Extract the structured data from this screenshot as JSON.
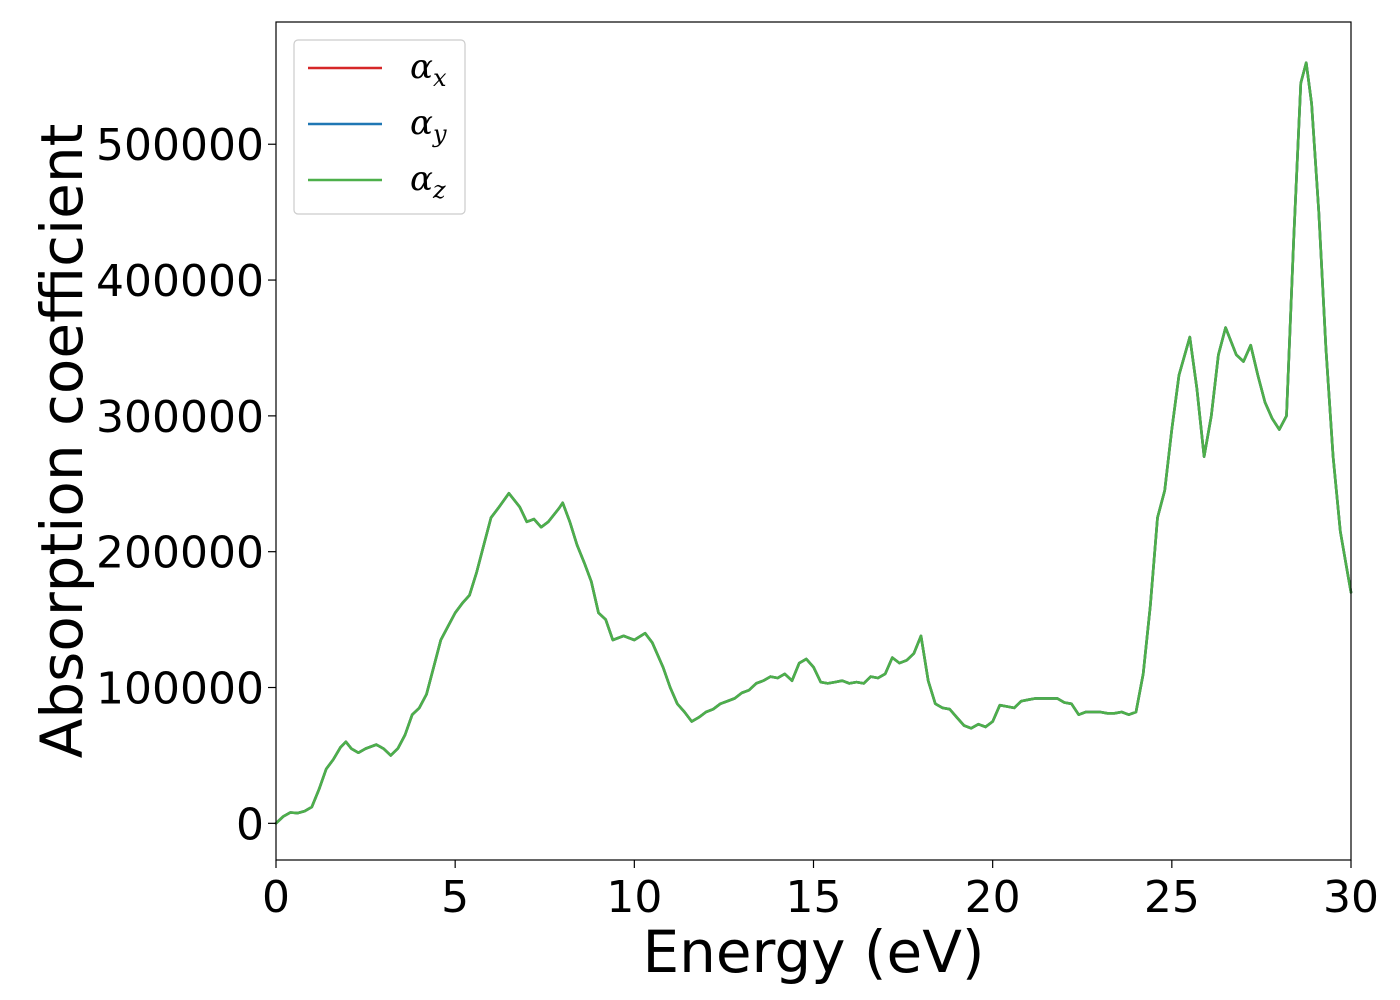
{
  "chart_data": {
    "type": "line",
    "xlabel": "Energy (eV)",
    "ylabel": "Absorption coefficient",
    "xlim": [
      0,
      30
    ],
    "ylim": [
      -27000,
      590000
    ],
    "xticks": [
      0,
      5,
      10,
      15,
      20,
      25,
      30
    ],
    "xtick_labels": [
      "0",
      "5",
      "10",
      "15",
      "20",
      "25",
      "30"
    ],
    "yticks": [
      0,
      100000,
      200000,
      300000,
      400000,
      500000
    ],
    "ytick_labels": [
      "0",
      "100000",
      "200000",
      "300000",
      "400000",
      "500000"
    ],
    "grid": false,
    "legend_position": "top-left",
    "legend": [
      {
        "symbol": "α",
        "subscript": "x",
        "color": "#d62728"
      },
      {
        "symbol": "α",
        "subscript": "y",
        "color": "#1f77b4"
      },
      {
        "symbol": "α",
        "subscript": "z",
        "color": "#4daf4a"
      }
    ],
    "curve": {
      "x": [
        0,
        0.2,
        0.4,
        0.6,
        0.8,
        1.0,
        1.2,
        1.4,
        1.6,
        1.8,
        1.95,
        2.1,
        2.3,
        2.5,
        2.8,
        3.0,
        3.2,
        3.4,
        3.6,
        3.8,
        4.0,
        4.2,
        4.4,
        4.6,
        4.8,
        5.0,
        5.2,
        5.4,
        5.6,
        5.8,
        6.0,
        6.2,
        6.5,
        6.8,
        7.0,
        7.2,
        7.4,
        7.6,
        7.9,
        8.0,
        8.2,
        8.4,
        8.6,
        8.8,
        9.0,
        9.2,
        9.4,
        9.7,
        10.0,
        10.3,
        10.5,
        10.8,
        11.0,
        11.2,
        11.4,
        11.6,
        11.8,
        12.0,
        12.2,
        12.4,
        12.6,
        12.8,
        13.0,
        13.2,
        13.4,
        13.6,
        13.8,
        14.0,
        14.2,
        14.4,
        14.6,
        14.8,
        15.0,
        15.2,
        15.4,
        15.6,
        15.8,
        16.0,
        16.2,
        16.4,
        16.6,
        16.8,
        17.0,
        17.2,
        17.4,
        17.6,
        17.8,
        18.0,
        18.2,
        18.4,
        18.6,
        18.8,
        19.0,
        19.2,
        19.4,
        19.6,
        19.8,
        20.0,
        20.2,
        20.4,
        20.6,
        20.8,
        21.0,
        21.2,
        21.4,
        21.6,
        21.8,
        22.0,
        22.2,
        22.4,
        22.6,
        22.8,
        23.0,
        23.2,
        23.4,
        23.6,
        23.8,
        24.0,
        24.2,
        24.4,
        24.6,
        24.8,
        25.0,
        25.2,
        25.5,
        25.7,
        25.9,
        26.1,
        26.3,
        26.5,
        26.8,
        27.0,
        27.2,
        27.4,
        27.6,
        27.8,
        28.0,
        28.2,
        28.4,
        28.6,
        28.75,
        28.9,
        29.1,
        29.3,
        29.5,
        29.7,
        29.9,
        30.0
      ],
      "y": [
        0,
        5000,
        8000,
        7500,
        9000,
        12000,
        25000,
        40000,
        47000,
        56000,
        60000,
        55000,
        52000,
        55000,
        58000,
        55000,
        50000,
        55000,
        65000,
        80000,
        85000,
        95000,
        115000,
        135000,
        145000,
        155000,
        162000,
        168000,
        185000,
        205000,
        225000,
        232000,
        243000,
        233000,
        222000,
        224000,
        218000,
        222000,
        232000,
        236000,
        222000,
        205000,
        192000,
        178000,
        155000,
        150000,
        135000,
        138000,
        135000,
        140000,
        133000,
        115000,
        100000,
        88000,
        82000,
        75000,
        78000,
        82000,
        84000,
        88000,
        90000,
        92000,
        96000,
        98000,
        103000,
        105000,
        108000,
        107000,
        110000,
        105000,
        118000,
        121000,
        115000,
        104000,
        103000,
        104000,
        105000,
        103000,
        104000,
        103000,
        108000,
        107000,
        110000,
        122000,
        118000,
        120000,
        125000,
        138000,
        105000,
        88000,
        85000,
        84000,
        78000,
        72000,
        70000,
        73000,
        71000,
        75000,
        87000,
        86000,
        85000,
        90000,
        91000,
        92000,
        92000,
        92000,
        92000,
        89000,
        88000,
        80000,
        82000,
        82000,
        82000,
        81000,
        81000,
        82000,
        80000,
        82000,
        110000,
        160000,
        225000,
        245000,
        290000,
        330000,
        358000,
        320000,
        270000,
        300000,
        345000,
        365000,
        345000,
        340000,
        352000,
        330000,
        310000,
        298000,
        290000,
        300000,
        430000,
        545000,
        560000,
        530000,
        450000,
        350000,
        270000,
        215000,
        185000,
        170000
      ]
    }
  }
}
